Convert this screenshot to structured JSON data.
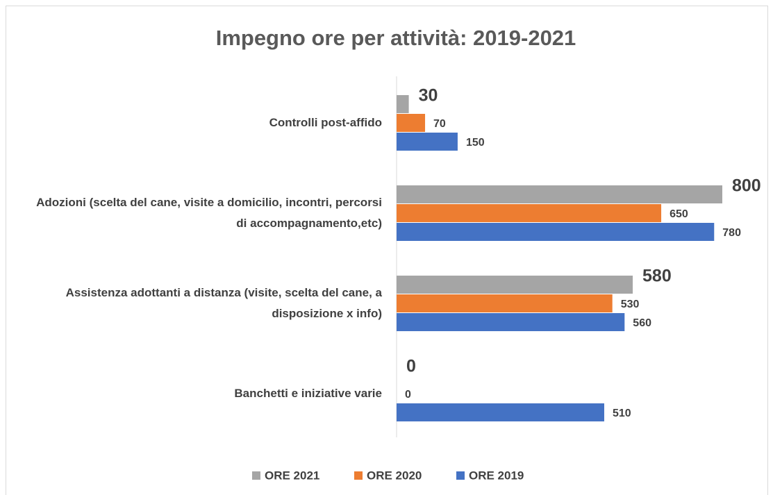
{
  "chart_data": {
    "type": "hbar",
    "title": "Impegno ore per attività: 2019-2021",
    "categories": [
      "Controlli post-affido",
      "Adozioni (scelta del cane, visite a domicilio, incontri, percorsi di accompagnamento,etc)",
      "Assistenza adottanti a distanza (visite, scelta del cane, a disposizione x info)",
      "Banchetti e iniziative varie"
    ],
    "series": [
      {
        "name": "ORE 2021",
        "color": "#a5a5a5",
        "values": [
          30,
          800,
          580,
          0
        ]
      },
      {
        "name": "ORE 2020",
        "color": "#ed7d31",
        "values": [
          70,
          650,
          530,
          0
        ]
      },
      {
        "name": "ORE 2019",
        "color": "#4472c4",
        "values": [
          150,
          780,
          560,
          510
        ]
      }
    ],
    "legend": "bottom"
  }
}
